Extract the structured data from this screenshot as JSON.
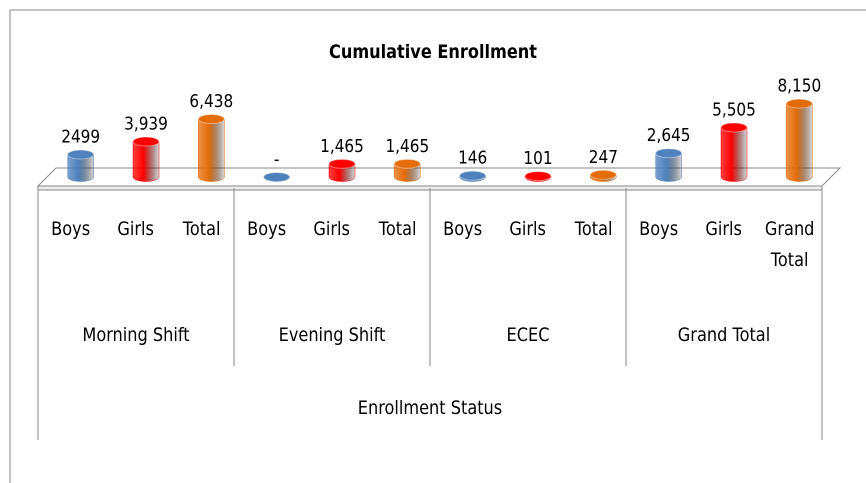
{
  "chart_data": {
    "type": "bar3d",
    "title": "Cumulative Enrollment",
    "axis_label": "Enrollment Status",
    "groups": [
      "Morning Shift",
      "Evening Shift",
      "ECEC",
      "Grand Total"
    ],
    "categories": [
      "Boys",
      "Girls",
      "Total",
      "Boys",
      "Girls",
      "Total",
      "Boys",
      "Girls",
      "Total",
      "Boys",
      "Girls",
      "Grand Total"
    ],
    "values": [
      2499,
      3939,
      6438,
      0,
      1465,
      1465,
      146,
      101,
      247,
      2645,
      5505,
      8150
    ],
    "value_labels": [
      "2499",
      "3,939",
      "6,438",
      "-",
      "1,465",
      "1,465",
      "146",
      "101",
      "247",
      "2,645",
      "5,505",
      "8,150"
    ],
    "colors": [
      "#4f81bd",
      "#ff0000",
      "#e46c0a",
      "#4f81bd",
      "#ff0000",
      "#e46c0a",
      "#4f81bd",
      "#ff0000",
      "#e46c0a",
      "#4f81bd",
      "#ff0000",
      "#e46c0a"
    ],
    "ylim": [
      0,
      10000
    ]
  }
}
